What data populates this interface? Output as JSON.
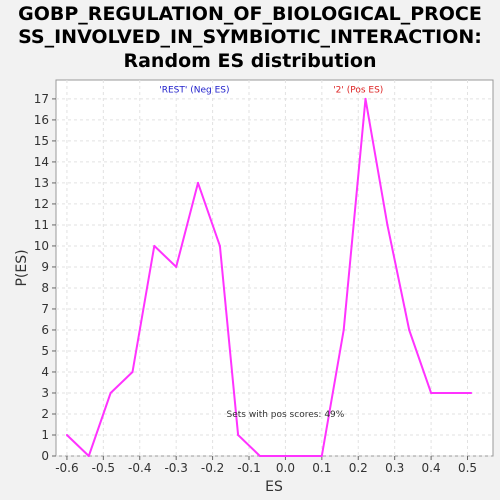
{
  "chart_data": {
    "type": "line",
    "title_lines": [
      "GOBP_REGULATION_OF_BIOLOGICAL_PROCE",
      "SS_INVOLVED_IN_SYMBIOTIC_INTERACTION:",
      "Random ES distribution"
    ],
    "xlabel": "ES",
    "ylabel": "P(ES)",
    "xlim": [
      -0.63,
      0.57
    ],
    "ylim": [
      0,
      17.9
    ],
    "xticks": [
      -0.6,
      -0.5,
      -0.4,
      -0.3,
      -0.2,
      -0.1,
      0.0,
      0.1,
      0.2,
      0.3,
      0.4,
      0.5
    ],
    "xtick_labels": [
      "-0.6",
      "-0.5",
      "-0.4",
      "-0.3",
      "-0.2",
      "-0.1",
      "0.0",
      "0.1",
      "0.2",
      "0.3",
      "0.4",
      "0.5"
    ],
    "yticks": [
      0,
      1,
      2,
      3,
      4,
      5,
      6,
      7,
      8,
      9,
      10,
      11,
      12,
      13,
      14,
      15,
      16,
      17
    ],
    "grid": true,
    "series": [
      {
        "color": "#ff33ff",
        "x": [
          -0.6,
          -0.54,
          -0.48,
          -0.42,
          -0.36,
          -0.3,
          -0.24,
          -0.18,
          -0.13,
          -0.07,
          -0.01,
          0.05,
          0.1,
          0.16,
          0.22,
          0.28,
          0.34,
          0.4,
          0.46,
          0.51
        ],
        "y": [
          1,
          0,
          3,
          4,
          10,
          9,
          13,
          10,
          1,
          0,
          0,
          0,
          0,
          6,
          17,
          11,
          6,
          3,
          3,
          3
        ]
      }
    ],
    "annotations": [
      {
        "text": "'REST' (Neg ES)",
        "color": "#2222cc",
        "x": -0.25,
        "y": 17.3
      },
      {
        "text": "'2' (Pos ES)",
        "color": "#dd2222",
        "x": 0.2,
        "y": 17.3
      },
      {
        "text": "Sets with pos scores: 49%",
        "color": "#333333",
        "x": 0.0,
        "y": 1.85
      }
    ]
  }
}
